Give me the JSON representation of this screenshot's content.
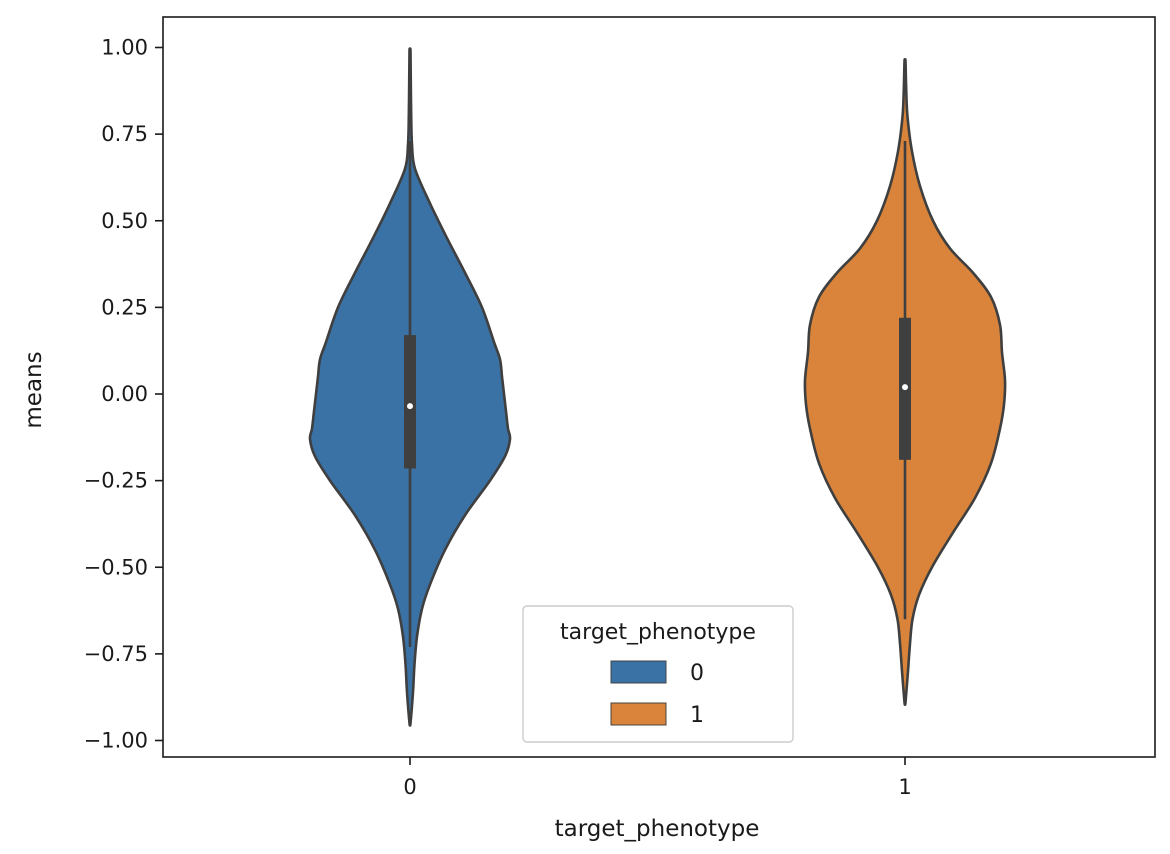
{
  "chart_data": {
    "type": "violin",
    "title": "",
    "xlabel": "target_phenotype",
    "ylabel": "means",
    "ylim": [
      -1.05,
      1.1
    ],
    "yticks": [
      1.0,
      0.75,
      0.5,
      0.25,
      0.0,
      -0.25,
      -0.5,
      -0.75,
      -1.0
    ],
    "ytick_labels": [
      "1.00",
      "0.75",
      "0.50",
      "0.25",
      "0.00",
      "−0.25",
      "−0.50",
      "−0.75",
      "−1.00"
    ],
    "categories": [
      "0",
      "1"
    ],
    "legend": {
      "title": "target_phenotype",
      "location": "lower-center",
      "entries": [
        {
          "label": "0",
          "color": "#3a72a5"
        },
        {
          "label": "1",
          "color": "#d9843a"
        }
      ]
    },
    "series": [
      {
        "name": "0",
        "color": "#3a72a5",
        "median": -0.035,
        "q1": -0.215,
        "q3": 0.17,
        "whisker_low": -0.73,
        "whisker_high": 0.73,
        "min": -0.95,
        "max": 0.99,
        "density": [
          [
            0.99,
            0.005
          ],
          [
            0.9,
            0.008
          ],
          [
            0.8,
            0.012
          ],
          [
            0.72,
            0.02
          ],
          [
            0.65,
            0.05
          ],
          [
            0.55,
            0.2
          ],
          [
            0.45,
            0.37
          ],
          [
            0.35,
            0.55
          ],
          [
            0.25,
            0.72
          ],
          [
            0.15,
            0.84
          ],
          [
            0.1,
            0.9
          ],
          [
            0.05,
            0.92
          ],
          [
            0.0,
            0.94
          ],
          [
            -0.05,
            0.96
          ],
          [
            -0.1,
            0.98
          ],
          [
            -0.13,
            1.0
          ],
          [
            -0.18,
            0.95
          ],
          [
            -0.25,
            0.8
          ],
          [
            -0.35,
            0.55
          ],
          [
            -0.45,
            0.35
          ],
          [
            -0.55,
            0.2
          ],
          [
            -0.62,
            0.12
          ],
          [
            -0.7,
            0.07
          ],
          [
            -0.78,
            0.045
          ],
          [
            -0.86,
            0.03
          ],
          [
            -0.95,
            0.005
          ]
        ]
      },
      {
        "name": "1",
        "color": "#d9843a",
        "median": 0.02,
        "q1": -0.19,
        "q3": 0.22,
        "whisker_low": -0.65,
        "whisker_high": 0.73,
        "min": -0.89,
        "max": 0.96,
        "density": [
          [
            0.96,
            0.005
          ],
          [
            0.88,
            0.012
          ],
          [
            0.8,
            0.025
          ],
          [
            0.7,
            0.07
          ],
          [
            0.6,
            0.15
          ],
          [
            0.5,
            0.28
          ],
          [
            0.42,
            0.45
          ],
          [
            0.35,
            0.68
          ],
          [
            0.28,
            0.86
          ],
          [
            0.2,
            0.95
          ],
          [
            0.12,
            0.97
          ],
          [
            0.04,
            1.0
          ],
          [
            -0.03,
            0.99
          ],
          [
            -0.1,
            0.95
          ],
          [
            -0.2,
            0.86
          ],
          [
            -0.3,
            0.7
          ],
          [
            -0.4,
            0.48
          ],
          [
            -0.5,
            0.27
          ],
          [
            -0.58,
            0.14
          ],
          [
            -0.65,
            0.075
          ],
          [
            -0.72,
            0.05
          ],
          [
            -0.8,
            0.03
          ],
          [
            -0.89,
            0.005
          ]
        ]
      }
    ]
  }
}
